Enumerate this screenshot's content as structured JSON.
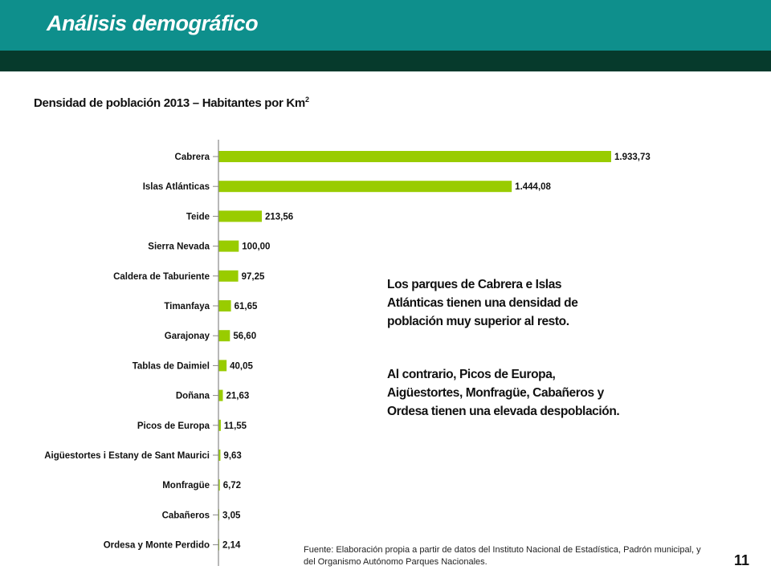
{
  "header": {
    "title": "Análisis demográfico",
    "colors": {
      "top_bar": "#0e8f8c",
      "dark_bar": "#063a2c"
    }
  },
  "chart_title": {
    "main": "Densidad de población 2013 – Habitantes por Km",
    "superscript": "2"
  },
  "chart_data": {
    "type": "bar",
    "orientation": "horizontal",
    "title": "Densidad de población 2013 – Habitantes por Km2",
    "xlabel": "",
    "ylabel": "",
    "grid": false,
    "legend": "none",
    "bar_color": "#99cc00",
    "xlim": [
      0,
      2000
    ],
    "categories": [
      "Cabrera",
      "Islas Atlánticas",
      "Teide",
      "Sierra Nevada",
      "Caldera de Taburiente",
      "Timanfaya",
      "Garajonay",
      "Tablas de Daimiel",
      "Doñana",
      "Picos de Europa",
      "Aigüestortes i Estany de Sant Maurici",
      "Monfragüe",
      "Cabañeros",
      "Ordesa y Monte Perdido"
    ],
    "values": [
      1933.73,
      1444.08,
      213.56,
      100.0,
      97.25,
      61.65,
      56.6,
      40.05,
      21.63,
      11.55,
      9.63,
      6.72,
      3.05,
      2.14
    ],
    "value_labels": [
      "1.933,73",
      "1.444,08",
      "213,56",
      "100,00",
      "97,25",
      "61,65",
      "56,60",
      "40,05",
      "21,63",
      "11,55",
      "9,63",
      "6,72",
      "3,05",
      "2,14"
    ]
  },
  "notes": {
    "note1": "Los parques de Cabrera e Islas Atlánticas tienen una densidad de población muy superior al resto.",
    "note2": "Al contrario, Picos de Europa, Aigüestortes, Monfragüe, Cabañeros y Ordesa tienen una elevada despoblación."
  },
  "source": "Fuente: Elaboración propia a partir de datos del Instituto Nacional de Estadística, Padrón municipal, y del Organismo Autónomo Parques Nacionales.",
  "page_number": "11"
}
